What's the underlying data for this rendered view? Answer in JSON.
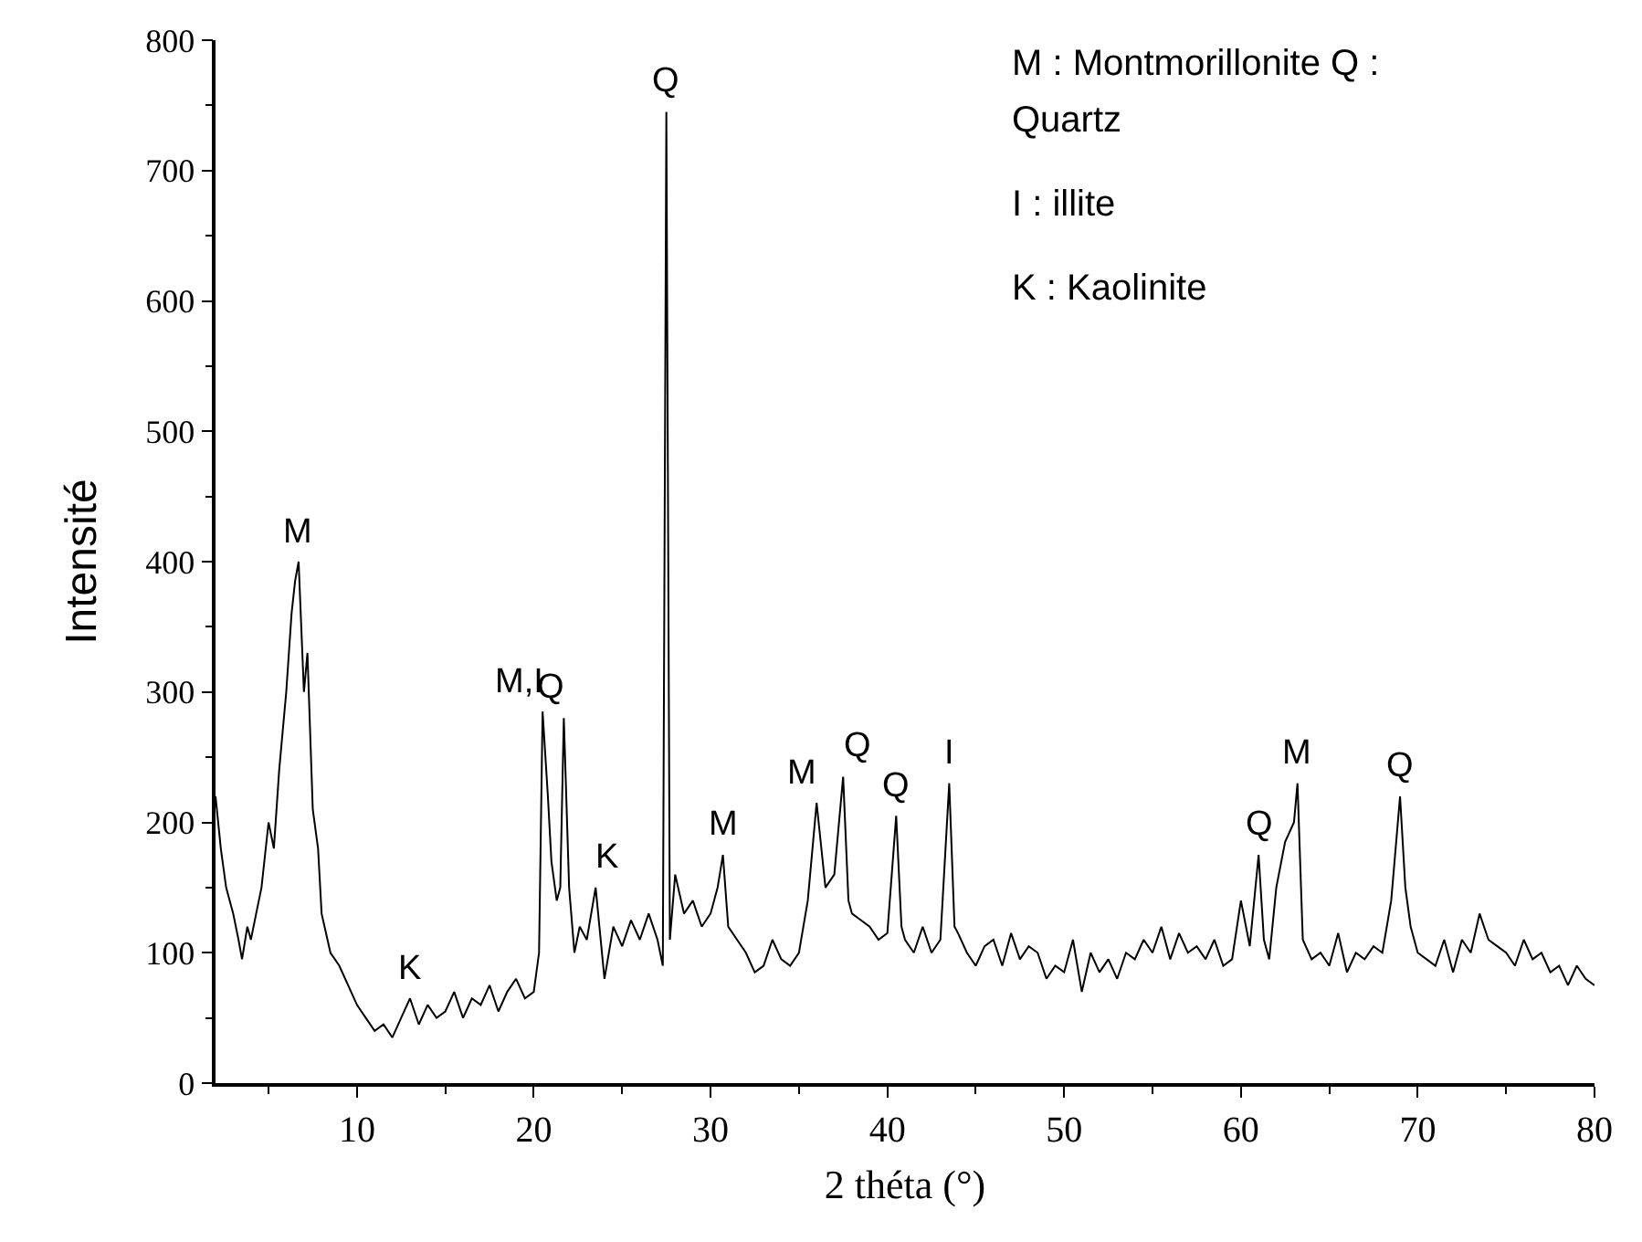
{
  "chart_data": {
    "type": "line",
    "xlabel": "2 théta (°)",
    "ylabel": "Intensité",
    "xlim": [
      2,
      80
    ],
    "xticks": [
      10,
      20,
      30,
      40,
      50,
      60,
      70,
      80
    ],
    "ylim": [
      0,
      800
    ],
    "yticks": [
      0,
      100,
      200,
      300,
      400,
      500,
      600,
      700,
      800
    ],
    "marker": "none",
    "line_style": "solid",
    "x": [
      2,
      2.3,
      2.6,
      3,
      3.3,
      3.5,
      3.8,
      4,
      4.3,
      4.6,
      5,
      5.3,
      5.6,
      6,
      6.3,
      6.5,
      6.7,
      7,
      7.2,
      7.5,
      7.8,
      8,
      8.5,
      9,
      9.5,
      10,
      10.5,
      11,
      11.5,
      12,
      12.5,
      13,
      13.5,
      14,
      14.5,
      15,
      15.5,
      16,
      16.5,
      17,
      17.5,
      18,
      18.5,
      19,
      19.5,
      20,
      20.3,
      20.5,
      20.8,
      21,
      21.3,
      21.5,
      21.7,
      22,
      22.3,
      22.6,
      23,
      23.5,
      24,
      24.5,
      25,
      25.5,
      26,
      26.5,
      27,
      27.3,
      27.5,
      27.7,
      28,
      28.5,
      29,
      29.5,
      30,
      30.4,
      30.7,
      31,
      31.5,
      32,
      32.5,
      33,
      33.5,
      34,
      34.5,
      35,
      35.5,
      36,
      36.5,
      37,
      37.5,
      37.8,
      38,
      38.5,
      39,
      39.5,
      40,
      40.5,
      40.8,
      41,
      41.5,
      42,
      42.5,
      43,
      43.5,
      43.8,
      44,
      44.5,
      45,
      45.5,
      46,
      46.5,
      47,
      47.5,
      48,
      48.5,
      49,
      49.5,
      50,
      50.5,
      51,
      51.5,
      52,
      52.5,
      53,
      53.5,
      54,
      54.5,
      55,
      55.5,
      56,
      56.5,
      57,
      57.5,
      58,
      58.5,
      59,
      59.5,
      60,
      60.5,
      61,
      61.3,
      61.6,
      62,
      62.5,
      63,
      63.2,
      63.5,
      64,
      64.5,
      65,
      65.5,
      66,
      66.5,
      67,
      67.5,
      68,
      68.5,
      69,
      69.3,
      69.6,
      70,
      70.5,
      71,
      71.5,
      72,
      72.5,
      73,
      73.5,
      74,
      74.5,
      75,
      75.5,
      76,
      76.5,
      77,
      77.5,
      78,
      78.5,
      79,
      79.5,
      80
    ],
    "values": [
      220,
      180,
      150,
      130,
      110,
      95,
      120,
      110,
      130,
      150,
      200,
      180,
      240,
      300,
      360,
      385,
      400,
      300,
      330,
      210,
      180,
      130,
      100,
      90,
      75,
      60,
      50,
      40,
      45,
      35,
      50,
      65,
      45,
      60,
      50,
      55,
      70,
      50,
      65,
      60,
      75,
      55,
      70,
      80,
      65,
      70,
      100,
      285,
      220,
      170,
      140,
      150,
      280,
      150,
      100,
      120,
      110,
      150,
      80,
      120,
      105,
      125,
      110,
      130,
      110,
      90,
      745,
      110,
      160,
      130,
      140,
      120,
      130,
      150,
      175,
      120,
      110,
      100,
      85,
      90,
      110,
      95,
      90,
      100,
      140,
      215,
      150,
      160,
      235,
      140,
      130,
      125,
      120,
      110,
      115,
      205,
      120,
      110,
      100,
      120,
      100,
      110,
      230,
      120,
      115,
      100,
      90,
      105,
      110,
      90,
      115,
      95,
      105,
      100,
      80,
      90,
      85,
      110,
      70,
      100,
      85,
      95,
      80,
      100,
      95,
      110,
      100,
      120,
      95,
      115,
      100,
      105,
      95,
      110,
      90,
      95,
      140,
      105,
      175,
      110,
      95,
      150,
      185,
      200,
      230,
      110,
      95,
      100,
      90,
      115,
      85,
      100,
      95,
      105,
      100,
      140,
      220,
      150,
      120,
      100,
      95,
      90,
      110,
      85,
      110,
      100,
      130,
      110,
      105,
      100,
      90,
      110,
      95,
      100,
      85,
      90,
      75,
      90,
      80,
      75
    ],
    "color": "#000000",
    "annotations": [
      {
        "text": "M",
        "x": 6.7,
        "y": 400
      },
      {
        "text": "K",
        "x": 13,
        "y": 65
      },
      {
        "text": "M,I",
        "x": 20.5,
        "y": 285
      },
      {
        "text": "Q",
        "x": 21.7,
        "y": 280
      },
      {
        "text": "K",
        "x": 23.5,
        "y": 150
      },
      {
        "text": "Q",
        "x": 27.5,
        "y": 745
      },
      {
        "text": "M",
        "x": 30.7,
        "y": 175
      },
      {
        "text": "M",
        "x": 36,
        "y": 215
      },
      {
        "text": "Q",
        "x": 37.5,
        "y": 235
      },
      {
        "text": "Q",
        "x": 40.5,
        "y": 205
      },
      {
        "text": "I",
        "x": 43.5,
        "y": 230
      },
      {
        "text": "Q",
        "x": 61,
        "y": 175
      },
      {
        "text": "M",
        "x": 63.2,
        "y": 230
      },
      {
        "text": "Q",
        "x": 69,
        "y": 220
      },
      "M : Montmorillonite Q :",
      "Quartz",
      "I : illite",
      "K : Kaolinite"
    ]
  }
}
